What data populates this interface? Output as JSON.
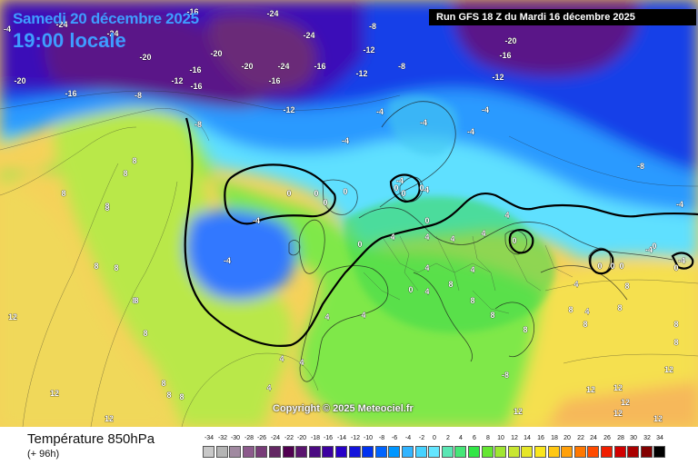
{
  "header": {
    "date_title": "Samedi 20 décembre 2025",
    "time_title": "19:00 locale",
    "run_info": "Run GFS 18 Z du Mardi 16 décembre 2025"
  },
  "copyright": "Copyright © 2025 Meteociel.fr",
  "footer": {
    "variable_name": "Température 850hPa",
    "forecast_step": "(+ 96h)"
  },
  "legend": {
    "labels": [
      "-34",
      "-32",
      "-30",
      "-28",
      "-26",
      "-24",
      "-22",
      "-20",
      "-18",
      "-16",
      "-14",
      "-12",
      "-10",
      "-8",
      "-6",
      "-4",
      "-2",
      "0",
      "2",
      "4",
      "6",
      "8",
      "10",
      "12",
      "14",
      "16",
      "18",
      "20",
      "22",
      "24",
      "26",
      "28",
      "30",
      "32",
      "34"
    ],
    "colors": [
      "#c8c8c8",
      "#b4b4b4",
      "#a089a0",
      "#8c5a8c",
      "#783c78",
      "#642864",
      "#500050",
      "#5a146e",
      "#4b0a82",
      "#3c00a0",
      "#2800c8",
      "#1414dc",
      "#0032f0",
      "#0064ff",
      "#0096ff",
      "#32b4ff",
      "#46d2ff",
      "#64e6ff",
      "#5ae6b4",
      "#46e678",
      "#32e646",
      "#64e632",
      "#a0e632",
      "#c8e632",
      "#e6e628",
      "#fae61e",
      "#ffc814",
      "#ffa00a",
      "#ff7800",
      "#ff4b00",
      "#f01e00",
      "#d20000",
      "#aa0000",
      "#820000",
      "#000000"
    ]
  },
  "map_labels": [
    {
      "text": "-4"
    },
    {
      "text": "-20"
    },
    {
      "text": "-24"
    },
    {
      "text": "-16"
    },
    {
      "text": "-24"
    },
    {
      "text": "-8"
    },
    {
      "text": "-20"
    },
    {
      "text": "-16"
    },
    {
      "text": "-12"
    },
    {
      "text": "-16"
    },
    {
      "text": "-16"
    },
    {
      "text": "-20"
    },
    {
      "text": "-20"
    },
    {
      "text": "-24"
    },
    {
      "text": "-16"
    },
    {
      "text": "-12"
    },
    {
      "text": "-24"
    },
    {
      "text": "-12"
    },
    {
      "text": "-16"
    },
    {
      "text": "-12"
    },
    {
      "text": "-8"
    },
    {
      "text": "-8"
    },
    {
      "text": "-24"
    },
    {
      "text": "-20"
    },
    {
      "text": "-16"
    },
    {
      "text": "-12"
    },
    {
      "text": "-4"
    },
    {
      "text": "-4"
    },
    {
      "text": "-4"
    },
    {
      "text": "-4"
    },
    {
      "text": "-8"
    },
    {
      "text": "-8"
    },
    {
      "text": "-4"
    },
    {
      "text": "-4"
    },
    {
      "text": "0"
    },
    {
      "text": "0"
    },
    {
      "text": "0"
    },
    {
      "text": "-4"
    },
    {
      "text": "0"
    },
    {
      "text": "-4"
    },
    {
      "text": "0"
    },
    {
      "text": "0"
    },
    {
      "text": "0"
    },
    {
      "text": "0"
    },
    {
      "text": "-4"
    },
    {
      "text": "-4"
    },
    {
      "text": "0"
    },
    {
      "text": "0"
    },
    {
      "text": "0"
    },
    {
      "text": "0"
    },
    {
      "text": "-4"
    },
    {
      "text": "0"
    },
    {
      "text": "4"
    },
    {
      "text": "4"
    },
    {
      "text": "4"
    },
    {
      "text": "4"
    },
    {
      "text": "4"
    },
    {
      "text": "4"
    },
    {
      "text": "4"
    },
    {
      "text": "4"
    },
    {
      "text": "4"
    },
    {
      "text": "4"
    },
    {
      "text": "4"
    },
    {
      "text": "4"
    },
    {
      "text": "8"
    },
    {
      "text": "8"
    },
    {
      "text": "8"
    },
    {
      "text": "8"
    },
    {
      "text": "8"
    },
    {
      "text": "8"
    },
    {
      "text": "8"
    },
    {
      "text": "8"
    },
    {
      "text": "8"
    },
    {
      "text": "8"
    },
    {
      "text": "8"
    },
    {
      "text": "8"
    },
    {
      "text": "8"
    },
    {
      "text": "8"
    },
    {
      "text": "8"
    },
    {
      "text": "8"
    },
    {
      "text": "8"
    },
    {
      "text": "12"
    },
    {
      "text": "12"
    },
    {
      "text": "12"
    },
    {
      "text": "12"
    },
    {
      "text": "12"
    },
    {
      "text": "12"
    },
    {
      "text": "12"
    },
    {
      "text": "12"
    },
    {
      "text": "12"
    },
    {
      "text": "12"
    },
    {
      "text": "-8"
    },
    {
      "text": "-4"
    },
    {
      "text": "0"
    },
    {
      "text": "0"
    },
    {
      "text": "0"
    },
    {
      "text": "4"
    },
    {
      "text": "8"
    },
    {
      "text": "8"
    },
    {
      "text": "8"
    },
    {
      "text": "4"
    },
    {
      "text": "4"
    },
    {
      "text": "8"
    },
    {
      "text": "8"
    },
    {
      "text": "8"
    }
  ]
}
